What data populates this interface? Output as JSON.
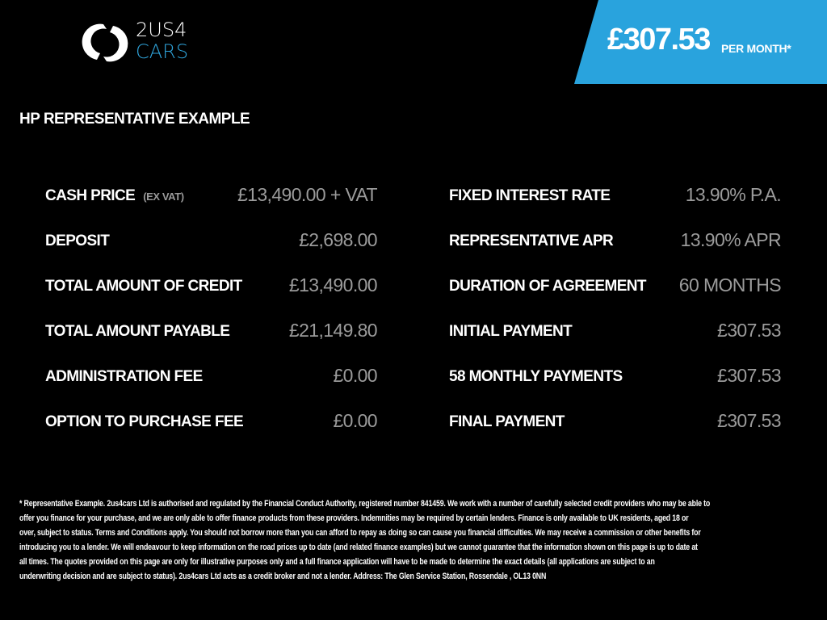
{
  "brand": {
    "line1": "2US4",
    "line2": "CARS",
    "accent": "#2fa4db"
  },
  "banner": {
    "price": "£307.53",
    "per_month": "PER MONTH*",
    "color": "#29a3dd"
  },
  "heading": "HP REPRESENTATIVE EXAMPLE",
  "left_rows": [
    {
      "label": "CASH PRICE",
      "sub": "(EX VAT)",
      "value": "£13,490.00 + VAT"
    },
    {
      "label": "DEPOSIT",
      "value": "£2,698.00"
    },
    {
      "label": "TOTAL AMOUNT OF CREDIT",
      "value": "£13,490.00"
    },
    {
      "label": "TOTAL AMOUNT PAYABLE",
      "value": "£21,149.80"
    },
    {
      "label": "ADMINISTRATION FEE",
      "value": "£0.00"
    },
    {
      "label": "OPTION TO PURCHASE FEE",
      "value": "£0.00"
    }
  ],
  "right_rows": [
    {
      "label": "FIXED INTEREST RATE",
      "value": "13.90% P.A."
    },
    {
      "label": "REPRESENTATIVE APR",
      "value": "13.90% APR"
    },
    {
      "label": "DURATION OF AGREEMENT",
      "value": "60 MONTHS"
    },
    {
      "label": "INITIAL PAYMENT",
      "value": "£307.53"
    },
    {
      "label": "58 MONTHLY PAYMENTS",
      "value": "£307.53"
    },
    {
      "label": "FINAL PAYMENT",
      "value": "£307.53"
    }
  ],
  "footer_lines": [
    "* Representative Example. 2us4cars Ltd is authorised and regulated by the Financial Conduct Authority, registered number 841459. We work with a number of carefully selected credit providers who may be able to",
    "offer you finance for your purchase, and we are only able to offer finance products from these providers. Indemnities may be required by certain lenders. Finance is only available to UK residents, aged 18 or",
    "over, subject to status. Terms and Conditions apply. You should not borrow more than you can afford to repay as doing so can cause you financial difficulties. We may receive a commission or other benefits for",
    "introducing you to a lender. We will endeavour to keep information on the road prices up to date (and related finance examples) but we cannot guarantee that the information shown on this page is up to date at",
    "all times. The quotes provided on this page are only for illustrative purposes only and a full finance application will have to be made to determine the exact details (all applications are subject to an",
    "underwriting decision and are subject to status). 2us4cars Ltd acts as a credit broker and not a lender. Address: The Glen Service Station, Rossendale , OL13 0NN"
  ]
}
